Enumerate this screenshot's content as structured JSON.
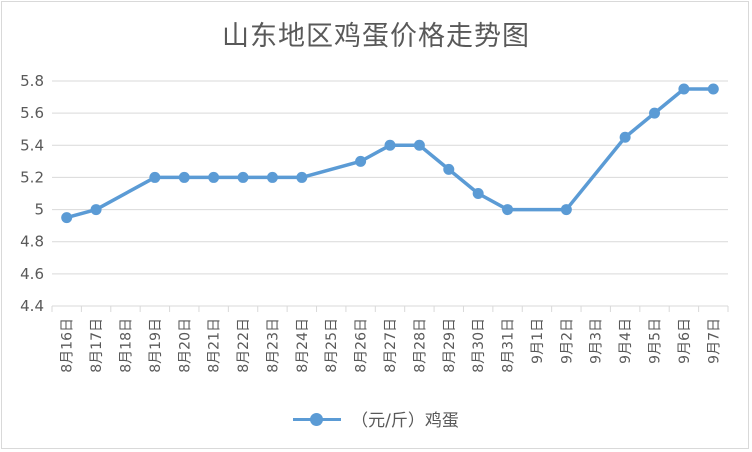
{
  "chart_data": {
    "type": "line",
    "title": "山东地区鸡蛋价格走势图",
    "categories": [
      "8月16日",
      "8月17日",
      "8月18日",
      "8月19日",
      "8月20日",
      "8月21日",
      "8月22日",
      "8月23日",
      "8月24日",
      "8月25日",
      "8月26日",
      "8月27日",
      "8月28日",
      "8月29日",
      "8月30日",
      "8月31日",
      "9月1日",
      "9月2日",
      "9月3日",
      "9月4日",
      "9月5日",
      "9月6日",
      "9月7日"
    ],
    "series": [
      {
        "name": "（元/斤）鸡蛋",
        "color": "#5b9bd5",
        "values": [
          4.95,
          5.0,
          null,
          5.2,
          5.2,
          5.2,
          5.2,
          5.2,
          5.2,
          null,
          5.3,
          5.4,
          5.4,
          5.25,
          5.1,
          5.0,
          null,
          5.0,
          null,
          5.45,
          5.6,
          5.75,
          5.75
        ]
      }
    ],
    "ylim": [
      4.4,
      5.8
    ],
    "yticks": [
      "4.4",
      "4.6",
      "4.8",
      "5",
      "5.2",
      "5.4",
      "5.6",
      "5.8"
    ],
    "grid": true,
    "legend_position": "bottom"
  }
}
